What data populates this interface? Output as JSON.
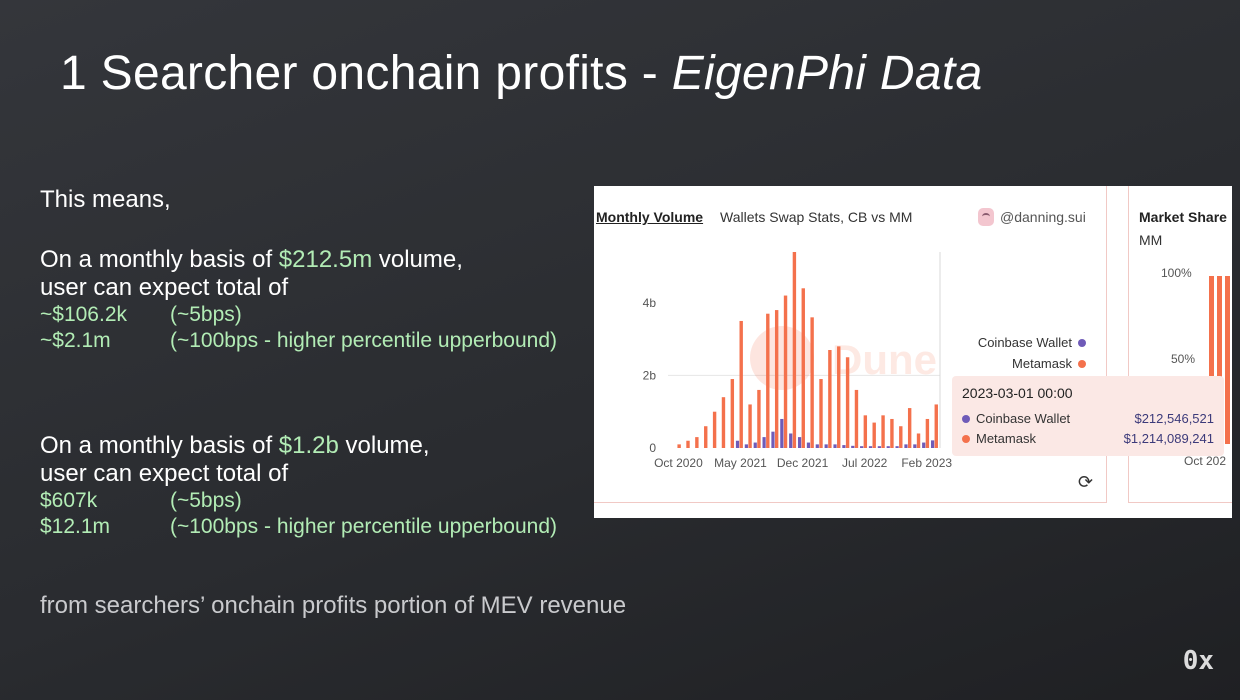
{
  "slide": {
    "title_main": "1 Searcher onchain profits - ",
    "title_italic": "EigenPhi Data",
    "intro": "This means,",
    "block1": {
      "line1_pre": "On a monthly basis of ",
      "line1_value": "$212.5m",
      "line1_post": " volume,",
      "line2": "user can expect total of",
      "rows": [
        {
          "value": "~$106.2k",
          "note": "(~5bps)"
        },
        {
          "value": "~$2.1m",
          "note": "(~100bps - higher percentile upperbound)"
        }
      ]
    },
    "block2": {
      "line1_pre": "On a monthly basis of ",
      "line1_value": "$1.2b",
      "line1_post": " volume,",
      "line2": "user can expect total of",
      "rows": [
        {
          "value": "$607k",
          "note": "(~5bps)"
        },
        {
          "value": "$12.1m",
          "note": "(~100bps - higher percentile upperbound)"
        }
      ]
    },
    "footer": "from searchers’ onchain profits portion of MEV revenue",
    "logo": "0x"
  },
  "dashboard": {
    "tab_active": "Monthly Volume",
    "tab_other": "Wallets Swap Stats, CB vs MM",
    "author": "@danning.sui",
    "watermark": "Dune",
    "legend": [
      {
        "label": "Coinbase Wallet",
        "color": "#6f5bb8"
      },
      {
        "label": "Metamask",
        "color": "#f4714c"
      }
    ],
    "tooltip": {
      "date": "2023-03-01 00:00",
      "rows": [
        {
          "label": "Coinbase Wallet",
          "value": "$212,546,521",
          "color": "#6f5bb8"
        },
        {
          "label": "Metamask",
          "value": "$1,214,089,241",
          "color": "#f4714c"
        }
      ]
    },
    "refresh_icon": "refresh-icon",
    "panel2": {
      "title": "Market Share",
      "subtitle": "MM",
      "ticks": [
        "100%",
        "50%"
      ],
      "xtick": "Oct 202"
    }
  },
  "chart_data": {
    "type": "bar",
    "stacked": false,
    "yticks": [
      "0",
      "2b",
      "4b"
    ],
    "ylim": [
      0,
      5.4
    ],
    "xticks": [
      "Oct 2020",
      "May 2021",
      "Dec 2021",
      "Jul 2022",
      "Feb 2023"
    ],
    "x": [
      "2020-10",
      "2020-11",
      "2020-12",
      "2021-01",
      "2021-02",
      "2021-03",
      "2021-04",
      "2021-05",
      "2021-06",
      "2021-07",
      "2021-08",
      "2021-09",
      "2021-10",
      "2021-11",
      "2021-12",
      "2022-01",
      "2022-02",
      "2022-03",
      "2022-04",
      "2022-05",
      "2022-06",
      "2022-07",
      "2022-08",
      "2022-09",
      "2022-10",
      "2022-11",
      "2022-12",
      "2023-01",
      "2023-02",
      "2023-03"
    ],
    "series": [
      {
        "name": "Metamask",
        "color": "#f4714c",
        "values": [
          0.1,
          0.2,
          0.3,
          0.6,
          1.0,
          1.4,
          1.9,
          3.5,
          1.2,
          1.6,
          3.7,
          3.8,
          4.2,
          5.4,
          4.4,
          3.6,
          1.9,
          2.7,
          2.8,
          2.5,
          1.6,
          0.9,
          0.7,
          0.9,
          0.8,
          0.6,
          1.1,
          0.4,
          0.8,
          1.2
        ]
      },
      {
        "name": "Coinbase Wallet",
        "color": "#6f5bb8",
        "values": [
          0,
          0,
          0,
          0,
          0,
          0,
          0,
          0.2,
          0.1,
          0.15,
          0.3,
          0.45,
          0.8,
          0.4,
          0.3,
          0.15,
          0.1,
          0.1,
          0.1,
          0.08,
          0.06,
          0.05,
          0.05,
          0.05,
          0.05,
          0.05,
          0.1,
          0.1,
          0.15,
          0.21
        ]
      }
    ]
  }
}
